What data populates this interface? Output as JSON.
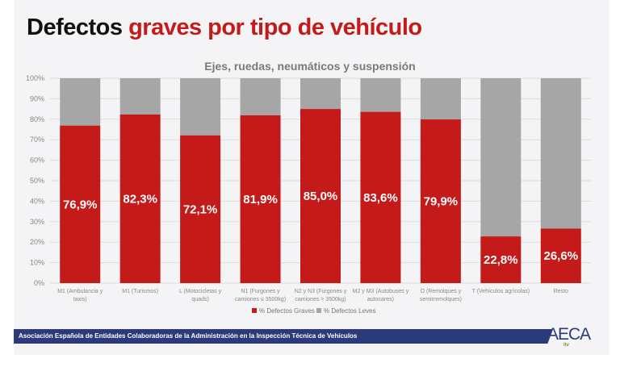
{
  "slide": {
    "title_part1": "Defectos",
    "title_part2": "graves por tipo de vehículo",
    "footer": "Asociación Española de Entidades Colaboradoras de la Administración en la Inspección Técnica de Vehículos",
    "logo": "AECA",
    "logo_sub": "itv"
  },
  "colors": {
    "graves": "#c41a1a",
    "leves": "#a6a6a6",
    "title_red": "#c41a1a",
    "footer": "#2b3a7a"
  },
  "chart_data": {
    "type": "bar",
    "stacked": true,
    "title": "Ejes, ruedas, neumáticos y suspensión",
    "categories": [
      [
        "M1 (Ambulancia y",
        "taxis)"
      ],
      [
        "M1 (Turismos)"
      ],
      [
        "L (Motocicletas y",
        "quads)"
      ],
      [
        "N1 (Furgones y",
        "camiones ≤ 3500kg)"
      ],
      [
        "N2 y N3 (Furgones y",
        "camiones > 3500kg)"
      ],
      [
        "M2 y M3 (Autobuses y",
        "autocares)"
      ],
      [
        "O (Remolques y",
        "semirremolques)"
      ],
      [
        "T (Vehículos agrícolas)"
      ],
      [
        "Resto"
      ]
    ],
    "series": [
      {
        "name": "% Defectos Graves",
        "values": [
          76.9,
          82.3,
          72.1,
          81.9,
          85.0,
          83.6,
          79.9,
          22.8,
          26.6
        ],
        "labels": [
          "76,9%",
          "82,3%",
          "72,1%",
          "81,9%",
          "85,0%",
          "83,6%",
          "79,9%",
          "22,8%",
          "26,6%"
        ]
      },
      {
        "name": "% Defectos Leves",
        "values": [
          23.1,
          17.7,
          27.9,
          18.1,
          15.0,
          16.4,
          20.1,
          77.2,
          73.4
        ]
      }
    ],
    "yticks": [
      "0%",
      "10%",
      "20%",
      "30%",
      "40%",
      "50%",
      "60%",
      "70%",
      "80%",
      "90%",
      "100%"
    ],
    "ylim": [
      0,
      100
    ],
    "grid": true,
    "legend": "bottom"
  }
}
